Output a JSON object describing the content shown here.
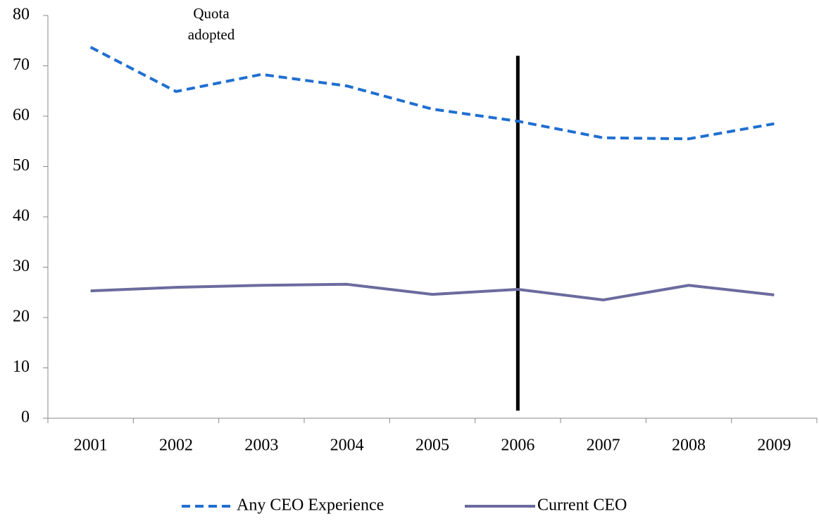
{
  "chart_data": {
    "type": "line",
    "categories": [
      "2001",
      "2002",
      "2003",
      "2004",
      "2005",
      "2006",
      "2007",
      "2008",
      "2009"
    ],
    "series": [
      {
        "name": "Any CEO Experience",
        "color": "#1f6fd0",
        "dashed": true,
        "values": [
          73.7,
          64.9,
          68.3,
          66.0,
          61.4,
          59.0,
          55.7,
          55.5,
          58.5
        ]
      },
      {
        "name": "Current CEO",
        "color": "#6b6b9f",
        "dashed": false,
        "values": [
          25.3,
          26.0,
          26.4,
          26.6,
          24.6,
          25.6,
          23.5,
          26.4,
          24.5
        ]
      }
    ],
    "ylim": [
      0,
      80
    ],
    "yticks": [
      0,
      10,
      20,
      30,
      40,
      50,
      60,
      70,
      80
    ],
    "grid": false,
    "legend": "bottom",
    "annotation": "Quota adopted",
    "vline_category": "2006",
    "vline_range": [
      1.5,
      72
    ],
    "vline_color": "#000000"
  }
}
